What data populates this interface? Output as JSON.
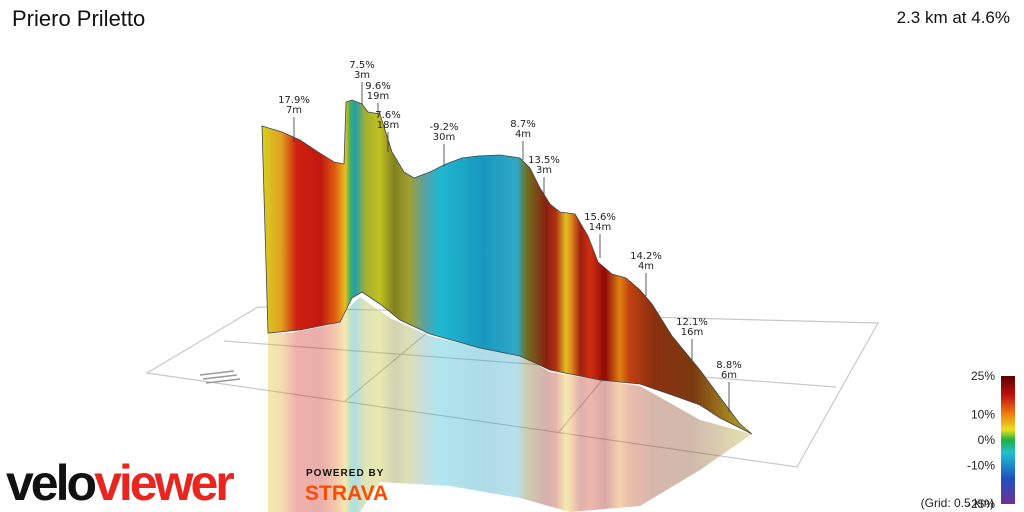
{
  "header": {
    "title": "Priero Priletto",
    "summary": "2.3 km at 4.6%"
  },
  "branding": {
    "logo_part1": "velo",
    "logo_part2": "viewer",
    "powered_by": "POWERED BY",
    "partner": "STRAVA"
  },
  "footer": {
    "grid_note": "(Grid: 0.5 km)"
  },
  "colors": {
    "brand_red": "#e8261f",
    "strava_orange": "#fc4c02",
    "grid": "#c8c8c8"
  },
  "chart_data": {
    "type": "area",
    "style": "3d-elevation-profile",
    "segment_annotations": [
      {
        "grade": "17.9%",
        "length": "7m"
      },
      {
        "grade": "7.5%",
        "length": "3m"
      },
      {
        "grade": "9.6%",
        "length": "19m"
      },
      {
        "grade": "7.6%",
        "length": "18m"
      },
      {
        "grade": "-9.2%",
        "length": "30m"
      },
      {
        "grade": "8.7%",
        "length": "4m"
      },
      {
        "grade": "13.5%",
        "length": "3m"
      },
      {
        "grade": "15.6%",
        "length": "14m"
      },
      {
        "grade": "14.2%",
        "length": "4m"
      },
      {
        "grade": "12.1%",
        "length": "16m"
      },
      {
        "grade": "8.8%",
        "length": "6m"
      }
    ],
    "legend": {
      "ticks": [
        "25%",
        "10%",
        "0%",
        "-10%",
        "-25%"
      ],
      "tick_values": [
        25,
        10,
        0,
        -10,
        -25
      ],
      "range": [
        -25,
        25
      ],
      "placement": "bottom-right"
    }
  }
}
